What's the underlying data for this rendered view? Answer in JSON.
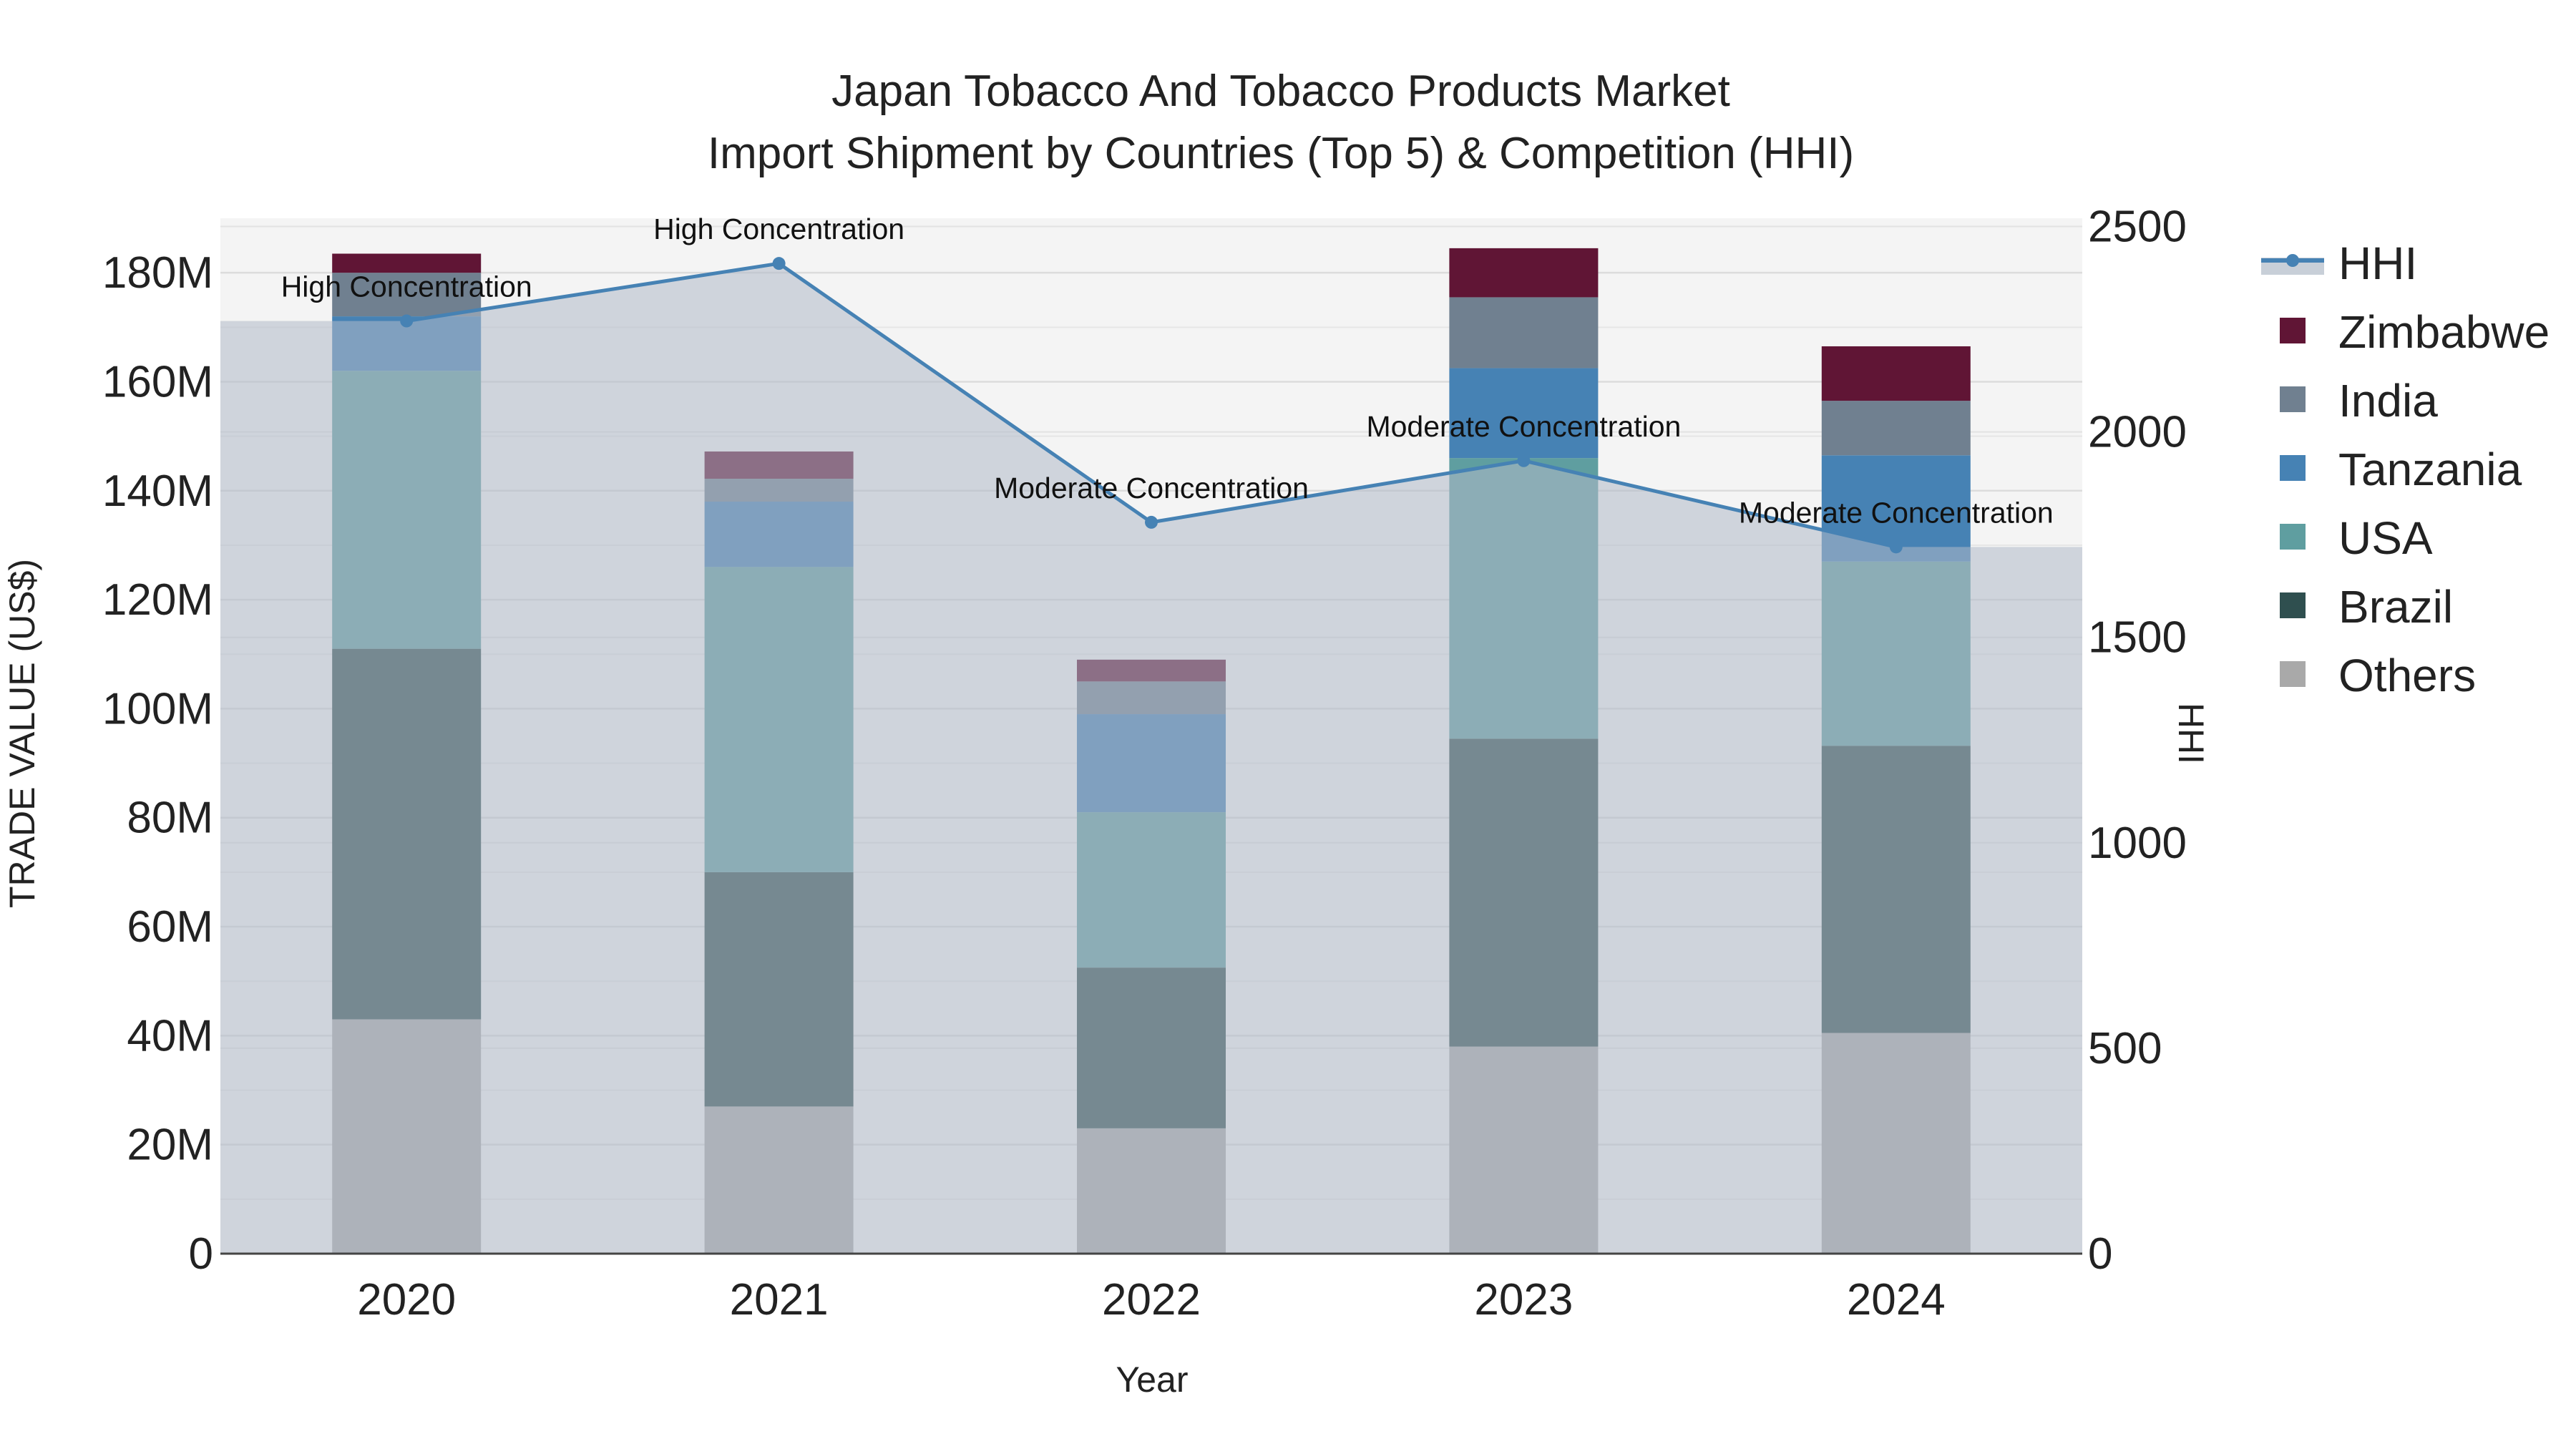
{
  "chart_data": {
    "type": "bar",
    "stacked": true,
    "title": [
      "Japan Tobacco And Tobacco Products Market",
      "Import Shipment by Countries (Top 5) & Competition (HHI)"
    ],
    "xlabel": "Year",
    "ylabel": "TRADE VALUE (US$)",
    "y2label": "HHI",
    "categories": [
      "2020",
      "2021",
      "2022",
      "2023",
      "2024"
    ],
    "ylim": [
      0,
      190000000
    ],
    "y2lim": [
      0,
      2520
    ],
    "yticks": [
      {
        "value": 0,
        "label": "0"
      },
      {
        "value": 20000000,
        "label": "20M"
      },
      {
        "value": 40000000,
        "label": "40M"
      },
      {
        "value": 60000000,
        "label": "60M"
      },
      {
        "value": 80000000,
        "label": "80M"
      },
      {
        "value": 100000000,
        "label": "100M"
      },
      {
        "value": 120000000,
        "label": "120M"
      },
      {
        "value": 140000000,
        "label": "140M"
      },
      {
        "value": 160000000,
        "label": "160M"
      },
      {
        "value": 180000000,
        "label": "180M"
      }
    ],
    "y2ticks": [
      {
        "value": 0,
        "label": "0"
      },
      {
        "value": 500,
        "label": "500"
      },
      {
        "value": 1000,
        "label": "1000"
      },
      {
        "value": 1500,
        "label": "1500"
      },
      {
        "value": 2000,
        "label": "2000"
      },
      {
        "value": 2500,
        "label": "2500"
      }
    ],
    "series": [
      {
        "name": "Others",
        "color": "#a9a9a9",
        "values": [
          43000000,
          27000000,
          23000000,
          38000000,
          40500000
        ]
      },
      {
        "name": "Brazil",
        "color": "#2f4f4f",
        "values": [
          68000000,
          43000000,
          29500000,
          56500000,
          52700000
        ]
      },
      {
        "name": "USA",
        "color": "#5f9ea0",
        "values": [
          51000000,
          56000000,
          28500000,
          51500000,
          33800000
        ]
      },
      {
        "name": "Tanzania",
        "color": "#4682b4",
        "values": [
          10000000,
          12000000,
          18000000,
          16500000,
          19500000
        ]
      },
      {
        "name": "India",
        "color": "#708090",
        "values": [
          8000000,
          4200000,
          6000000,
          13000000,
          10000000
        ]
      },
      {
        "name": "Zimbabwe",
        "color": "#601535",
        "values": [
          3500000,
          5000000,
          4000000,
          9000000,
          10000000
        ]
      }
    ],
    "hhi": {
      "name": "HHI",
      "color": "#4682b4",
      "values": [
        2270,
        2410,
        1780,
        1930,
        1720
      ],
      "labels": [
        "High Concentration",
        "High Concentration",
        "Moderate Concentration",
        "Moderate Concentration",
        "Moderate Concentration"
      ]
    },
    "legend": [
      "HHI",
      "Zimbabwe",
      "India",
      "Tanzania",
      "USA",
      "Brazil",
      "Others"
    ],
    "legend_position": "top-right"
  }
}
